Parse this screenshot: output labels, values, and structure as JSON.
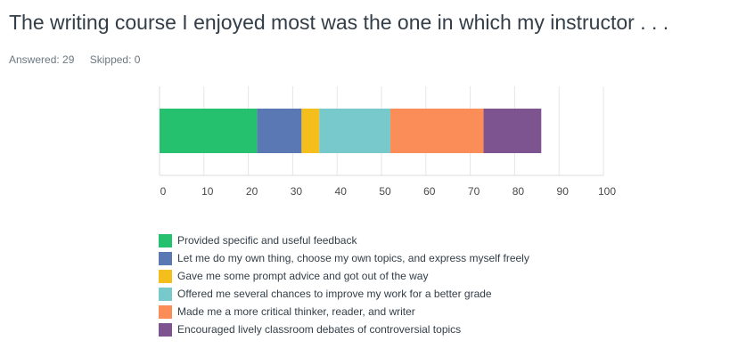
{
  "title": "The writing course I enjoyed most was the one in which my instructor . . .",
  "answered": "Answered: 29",
  "skipped": "Skipped: 0",
  "chart_data": {
    "type": "bar",
    "orientation": "horizontal",
    "stacked": true,
    "xlim": [
      0,
      100
    ],
    "xticks": [
      "0",
      "10",
      "20",
      "30",
      "40",
      "50",
      "60",
      "70",
      "80",
      "90",
      "100"
    ],
    "grid": true,
    "legend_position": "bottom",
    "series": [
      {
        "name": "Provided specific and useful feedback",
        "value": 22,
        "color": "#26c16e"
      },
      {
        "name": "Let me do my own thing, choose my own topics, and express myself freely",
        "value": 10,
        "color": "#5a78b4"
      },
      {
        "name": "Gave me some prompt advice and got out of the way",
        "value": 4,
        "color": "#f4bf1c"
      },
      {
        "name": "Offered me several chances to improve my work for a better grade",
        "value": 16,
        "color": "#78c9cb"
      },
      {
        "name": "Made me a more critical thinker, reader, and writer",
        "value": 21,
        "color": "#fa8d58"
      },
      {
        "name": "Encouraged lively classroom debates of controversial topics",
        "value": 13,
        "color": "#7d5490"
      }
    ]
  }
}
